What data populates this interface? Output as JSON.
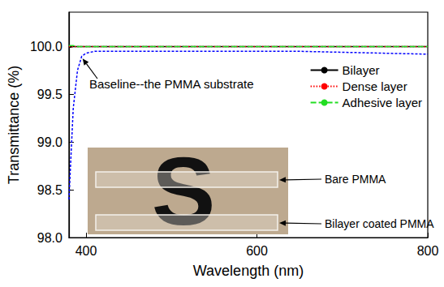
{
  "chart_data": {
    "type": "line",
    "x_label": "Wavelength (nm)",
    "y_label": "Transmittance (%)",
    "x": [
      380,
      385,
      390,
      395,
      400,
      410,
      420,
      450,
      500,
      550,
      600,
      650,
      700,
      750,
      800
    ],
    "series": [
      {
        "name": "Bilayer",
        "color": "#000000",
        "line_style": "solid",
        "values": [
          99.99,
          100.0,
          100.0,
          100.0,
          100.0,
          100.0,
          100.0,
          100.0,
          100.0,
          100.0,
          100.0,
          100.0,
          100.0,
          100.0,
          100.0
        ]
      },
      {
        "name": "Dense layer",
        "color": "#ff0000",
        "line_style": "dotted",
        "values": [
          100.0,
          100.0,
          100.0,
          100.0,
          100.0,
          100.0,
          100.0,
          100.0,
          100.0,
          100.0,
          100.0,
          100.0,
          100.0,
          100.0,
          100.0
        ]
      },
      {
        "name": "Adhesive layer",
        "color": "#22dd22",
        "line_style": "dashed",
        "values": [
          100.01,
          100.01,
          100.0,
          100.0,
          100.0,
          100.0,
          100.0,
          100.0,
          100.0,
          100.0,
          100.0,
          100.0,
          100.0,
          100.0,
          100.0
        ]
      },
      {
        "color": "#0000ff",
        "line_style": "short_dashed",
        "annotation": {
          "text": "Baseline--the PMMA substrate",
          "x": 395
        },
        "values": [
          98.4,
          99.35,
          99.75,
          99.9,
          99.93,
          99.95,
          99.95,
          99.95,
          99.95,
          99.95,
          99.95,
          99.95,
          99.94,
          99.93,
          99.92
        ]
      }
    ],
    "xlim": [
      380,
      800
    ],
    "xticks": [
      400,
      600,
      800
    ],
    "ylim": [
      98.0,
      100.36
    ],
    "yticks": [
      {
        "value": 98.0,
        "label": "98.0"
      },
      {
        "value": 98.5,
        "label": "98.5"
      },
      {
        "value": 99.0,
        "label": "99.0"
      },
      {
        "value": 99.5,
        "label": "99.5"
      },
      {
        "value": 100.0,
        "label": "100.0"
      }
    ],
    "grid": false,
    "legend": "upper right",
    "inset": {
      "letter": "S",
      "labels": [
        "Bare PMMA",
        "Bilayer coated PMMA"
      ]
    }
  }
}
